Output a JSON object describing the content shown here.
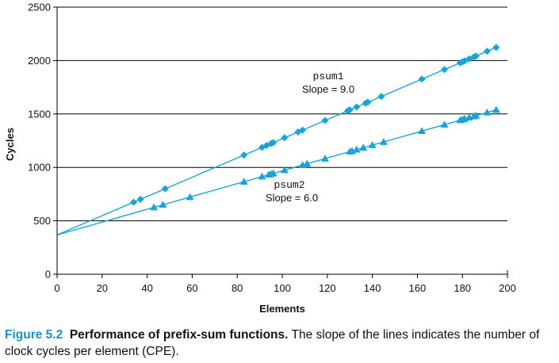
{
  "chart_data": {
    "type": "line",
    "xlabel": "Elements",
    "ylabel": "Cycles",
    "xlim": [
      0,
      200
    ],
    "ylim": [
      0,
      2500
    ],
    "x_ticks": [
      "0",
      "20",
      "40",
      "60",
      "80",
      "100",
      "120",
      "140",
      "160",
      "180",
      "200"
    ],
    "y_ticks": [
      "0",
      "500",
      "1000",
      "1500",
      "2000",
      "2500"
    ],
    "grid": "horizontal",
    "line_color": "#1aa3d9",
    "series": [
      {
        "name": "psum1",
        "marker": "diamond",
        "intercept": 368,
        "slope": 9.0,
        "x": [
          34,
          37,
          48,
          83,
          91,
          93,
          95,
          96,
          101,
          107,
          109,
          119,
          129,
          130,
          133,
          137,
          138,
          144,
          162,
          172,
          179,
          180,
          181,
          183,
          185,
          186,
          191,
          195
        ]
      },
      {
        "name": "psum2",
        "marker": "triangle",
        "intercept": 368,
        "slope": 6.0,
        "x": [
          43,
          47,
          59,
          83,
          91,
          94,
          95,
          96,
          101,
          109,
          111,
          119,
          130,
          131,
          133,
          136,
          140,
          145,
          162,
          172,
          179,
          180,
          181,
          183,
          185,
          186,
          191,
          195
        ]
      }
    ],
    "annotations": [
      {
        "series_label": "psum1",
        "slope_label": "Slope = 9.0"
      },
      {
        "series_label": "psum2",
        "slope_label": "Slope = 6.0"
      }
    ]
  },
  "caption": {
    "label": "Figure 5.2",
    "title": "Performance of prefix-sum functions.",
    "text": "The slope of the lines indicates the number of clock cycles per element (CPE)."
  }
}
